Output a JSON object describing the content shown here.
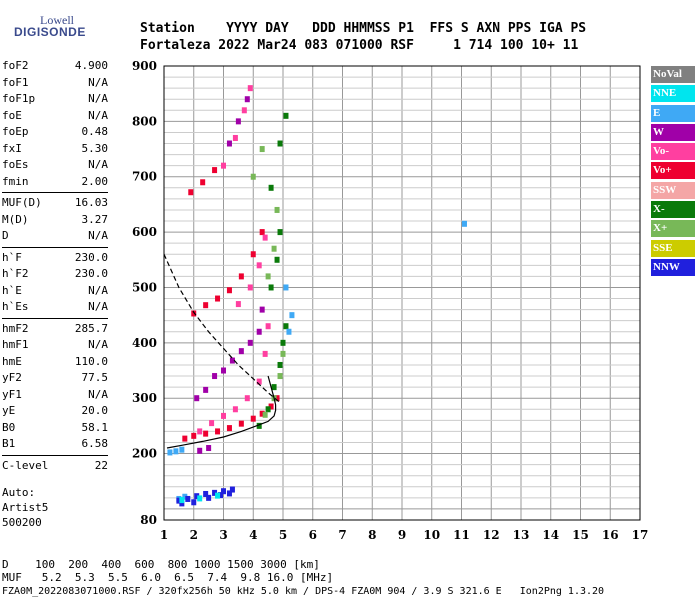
{
  "logo": {
    "top": "Lowell",
    "bottom": "DIGISONDE"
  },
  "header": {
    "line1": "Station    YYYY DAY   DDD HHMMSS P1  FFS S AXN PPS IGA PS",
    "line2": "Fortaleza 2022 Mar24 083 071000 RSF     1 714 100 10+ 11"
  },
  "params": [
    {
      "name": "foF2",
      "value": "4.900"
    },
    {
      "name": "foF1",
      "value": "N/A"
    },
    {
      "name": "foF1p",
      "value": "N/A"
    },
    {
      "name": "foE",
      "value": "N/A"
    },
    {
      "name": "foEp",
      "value": "0.48"
    },
    {
      "name": "fxI",
      "value": "5.30"
    },
    {
      "name": "foEs",
      "value": "N/A"
    },
    {
      "name": "fmin",
      "value": "2.00"
    },
    {
      "sep": true
    },
    {
      "name": "MUF(D)",
      "value": "16.03"
    },
    {
      "name": "M(D)",
      "value": "3.27"
    },
    {
      "name": "D",
      "value": "N/A"
    },
    {
      "sep": true
    },
    {
      "name": "h`F",
      "value": "230.0"
    },
    {
      "name": "h`F2",
      "value": "230.0"
    },
    {
      "name": "h`E",
      "value": "N/A"
    },
    {
      "name": "h`Es",
      "value": "N/A"
    },
    {
      "sep": true
    },
    {
      "name": "hmF2",
      "value": "285.7"
    },
    {
      "name": "hmF1",
      "value": "N/A"
    },
    {
      "name": "hmE",
      "value": "110.0"
    },
    {
      "name": "yF2",
      "value": "77.5"
    },
    {
      "name": "yF1",
      "value": "N/A"
    },
    {
      "name": "yE",
      "value": "20.0"
    },
    {
      "name": "B0",
      "value": "58.1"
    },
    {
      "name": "B1",
      "value": "6.58"
    },
    {
      "sep": true
    },
    {
      "name": "C-level",
      "value": "22"
    }
  ],
  "auto": {
    "line1": "Auto:",
    "line2": "Artist5",
    "line3": "500200"
  },
  "legend": [
    {
      "label": "NoVal",
      "color": "#808080"
    },
    {
      "label": "NNE",
      "color": "#00e5ee"
    },
    {
      "label": "E",
      "color": "#3fa9f5"
    },
    {
      "label": "W",
      "color": "#a000a8"
    },
    {
      "label": "Vo-",
      "color": "#ff3fa0"
    },
    {
      "label": "Vo+",
      "color": "#ee0030"
    },
    {
      "label": "SSW",
      "color": "#f4a6a6"
    },
    {
      "label": "X-",
      "color": "#0a7a0a"
    },
    {
      "label": "X+",
      "color": "#78b858"
    },
    {
      "label": "SSE",
      "color": "#cccc00"
    },
    {
      "label": "NNW",
      "color": "#2020dd"
    }
  ],
  "footer": {
    "d_row": "D    100  200  400  600  800 1000 1500 3000 [km]",
    "muf_row": "MUF   5.2  5.3  5.5  6.0  6.5  7.4  9.8 16.0 [MHz]",
    "file_row": "FZA0M_2022083071000.RSF / 320fx256h 50 kHz 5.0 km / DPS-4 FZA0M 904 / 3.9 S 321.6 E   Ion2Png 1.3.20"
  },
  "chart_data": {
    "type": "scatter",
    "title": "",
    "xlabel": "",
    "ylabel": "",
    "xlim": [
      1,
      17
    ],
    "ylim": [
      80,
      900
    ],
    "x_ticks": [
      1,
      2,
      3,
      4,
      5,
      6,
      7,
      8,
      9,
      10,
      11,
      12,
      13,
      14,
      15,
      16,
      17
    ],
    "y_ticks": [
      80,
      200,
      300,
      400,
      500,
      600,
      700,
      800,
      900
    ],
    "grid": true,
    "series": [
      {
        "name": "Vo+",
        "color": "#ee0030",
        "points": [
          [
            1.7,
            227
          ],
          [
            2.0,
            232
          ],
          [
            2.4,
            236
          ],
          [
            2.8,
            240
          ],
          [
            3.2,
            246
          ],
          [
            3.6,
            254
          ],
          [
            4.0,
            263
          ],
          [
            4.3,
            272
          ],
          [
            4.6,
            285
          ],
          [
            4.8,
            300
          ],
          [
            2.0,
            453
          ],
          [
            2.4,
            468
          ],
          [
            2.8,
            480
          ],
          [
            3.2,
            495
          ],
          [
            3.6,
            520
          ],
          [
            4.0,
            560
          ],
          [
            4.3,
            600
          ],
          [
            1.9,
            672
          ],
          [
            2.3,
            690
          ],
          [
            2.7,
            712
          ]
        ]
      },
      {
        "name": "Vo-",
        "color": "#ff3fa0",
        "points": [
          [
            2.2,
            240
          ],
          [
            2.6,
            255
          ],
          [
            3.0,
            268
          ],
          [
            3.4,
            280
          ],
          [
            3.8,
            300
          ],
          [
            4.2,
            330
          ],
          [
            4.4,
            380
          ],
          [
            4.5,
            430
          ],
          [
            3.5,
            470
          ],
          [
            3.9,
            500
          ],
          [
            4.2,
            540
          ],
          [
            4.4,
            590
          ],
          [
            3.0,
            720
          ],
          [
            3.4,
            770
          ],
          [
            3.7,
            820
          ],
          [
            3.9,
            860
          ]
        ]
      },
      {
        "name": "W",
        "color": "#a000a8",
        "points": [
          [
            2.1,
            300
          ],
          [
            2.4,
            315
          ],
          [
            2.7,
            340
          ],
          [
            3.0,
            350
          ],
          [
            3.3,
            368
          ],
          [
            3.6,
            385
          ],
          [
            3.9,
            400
          ],
          [
            4.2,
            420
          ],
          [
            4.3,
            460
          ],
          [
            3.2,
            760
          ],
          [
            3.5,
            800
          ],
          [
            3.8,
            840
          ],
          [
            2.2,
            205
          ],
          [
            2.5,
            210
          ]
        ]
      },
      {
        "name": "X-",
        "color": "#0a7a0a",
        "points": [
          [
            4.2,
            250
          ],
          [
            4.5,
            280
          ],
          [
            4.7,
            320
          ],
          [
            4.9,
            360
          ],
          [
            5.0,
            400
          ],
          [
            5.1,
            430
          ],
          [
            4.6,
            500
          ],
          [
            4.8,
            550
          ],
          [
            4.9,
            600
          ],
          [
            4.6,
            680
          ],
          [
            4.9,
            760
          ],
          [
            5.1,
            810
          ]
        ]
      },
      {
        "name": "X+",
        "color": "#78b858",
        "points": [
          [
            4.4,
            270
          ],
          [
            4.7,
            300
          ],
          [
            4.9,
            340
          ],
          [
            5.0,
            380
          ],
          [
            4.5,
            520
          ],
          [
            4.7,
            570
          ],
          [
            4.8,
            640
          ],
          [
            4.0,
            700
          ],
          [
            4.3,
            750
          ]
        ]
      },
      {
        "name": "E",
        "color": "#3fa9f5",
        "points": [
          [
            1.2,
            202
          ],
          [
            1.4,
            204
          ],
          [
            1.6,
            207
          ],
          [
            5.2,
            420
          ],
          [
            5.3,
            450
          ],
          [
            5.1,
            500
          ],
          [
            11.1,
            615
          ],
          [
            1.5,
            118
          ],
          [
            1.7,
            122
          ]
        ]
      },
      {
        "name": "NNW",
        "color": "#2020dd",
        "points": [
          [
            1.5,
            115
          ],
          [
            1.8,
            118
          ],
          [
            2.1,
            123
          ],
          [
            2.4,
            127
          ],
          [
            2.7,
            129
          ],
          [
            3.0,
            132
          ],
          [
            3.3,
            135
          ],
          [
            1.6,
            110
          ],
          [
            2.0,
            112
          ],
          [
            2.5,
            120
          ],
          [
            2.9,
            125
          ],
          [
            3.2,
            128
          ]
        ]
      },
      {
        "name": "NNE",
        "color": "#00e5ee",
        "points": [
          [
            1.6,
            116
          ],
          [
            2.2,
            119
          ],
          [
            2.8,
            124
          ]
        ]
      }
    ],
    "lines": [
      {
        "name": "profile",
        "style": "solid",
        "x": [
          1.1,
          1.6,
          2.3,
          3.0,
          3.6,
          4.1,
          4.5,
          4.7,
          4.75,
          4.75,
          4.7,
          4.6,
          4.5
        ],
        "y": [
          210,
          215,
          222,
          230,
          240,
          250,
          258,
          268,
          278,
          288,
          300,
          320,
          340
        ]
      },
      {
        "name": "scaled",
        "style": "dashed",
        "x": [
          1.0,
          1.5,
          2.0,
          2.5,
          3.0,
          3.5,
          4.0,
          4.5,
          4.9
        ],
        "y": [
          560,
          500,
          455,
          420,
          390,
          360,
          335,
          310,
          292
        ]
      }
    ]
  }
}
